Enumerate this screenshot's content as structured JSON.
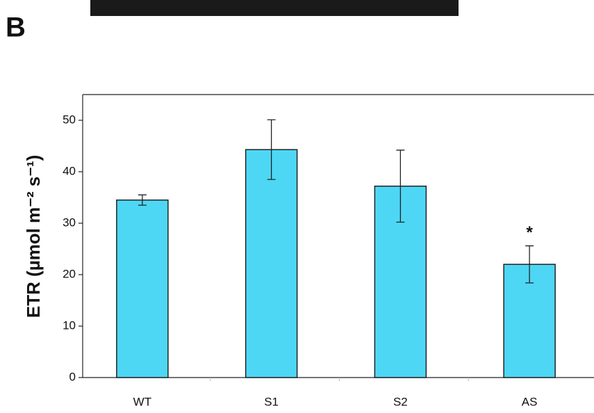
{
  "panel_label": "B",
  "chart_data": {
    "type": "bar",
    "y_label": "ETR (µmol m⁻² s⁻¹)",
    "categories": [
      "WT",
      "S1",
      "S2",
      "AS"
    ],
    "values": [
      34.5,
      44.3,
      37.2,
      22
    ],
    "errors": [
      1,
      5.8,
      7,
      3.6
    ],
    "annotation": "*",
    "color": "#4dd7f5",
    "ylim": [
      0,
      55
    ],
    "yticks": [
      0,
      10,
      20,
      30,
      40,
      50
    ]
  }
}
